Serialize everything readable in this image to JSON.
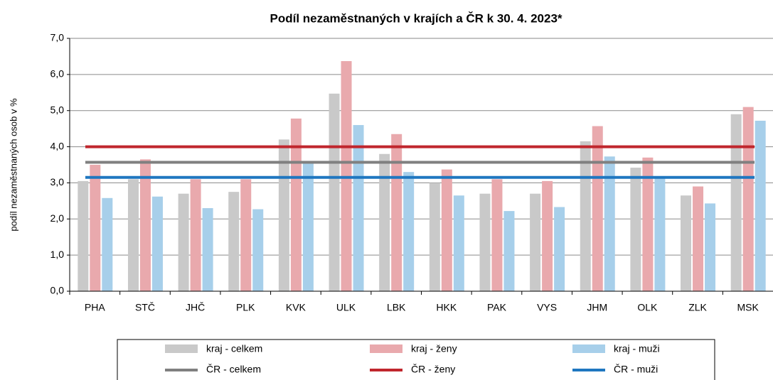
{
  "chart_data": {
    "type": "bar",
    "title": "Podíl nezaměstnaných v krajích a ČR k 30. 4. 2023*",
    "y_label": "podíl nezaměstnaných osob v %",
    "categories": [
      "PHA",
      "STČ",
      "JHČ",
      "PLK",
      "KVK",
      "ULK",
      "LBK",
      "HKK",
      "PAK",
      "VYS",
      "JHM",
      "OLK",
      "ZLK",
      "MSK"
    ],
    "series": [
      {
        "name": "kraj - celkem",
        "color": "#c9c9c9",
        "values": [
          3.05,
          3.1,
          2.7,
          2.75,
          4.2,
          5.47,
          3.8,
          3.0,
          2.7,
          2.7,
          4.15,
          3.42,
          2.65,
          4.9
        ]
      },
      {
        "name": "kraj - ženy",
        "color": "#e9a9ad",
        "values": [
          3.5,
          3.65,
          3.1,
          3.1,
          4.78,
          6.37,
          4.35,
          3.37,
          3.1,
          3.05,
          4.57,
          3.7,
          2.9,
          5.1
        ]
      },
      {
        "name": "kraj - muži",
        "color": "#a7cfea",
        "values": [
          2.58,
          2.62,
          2.3,
          2.27,
          3.55,
          4.6,
          3.3,
          2.65,
          2.22,
          2.33,
          3.73,
          3.15,
          2.43,
          4.72
        ]
      }
    ],
    "reference_lines": [
      {
        "name": "ČR - celkem",
        "color": "#808080",
        "value": 3.57
      },
      {
        "name": "ČR - ženy",
        "color": "#c0262d",
        "value": 4.0
      },
      {
        "name": "ČR - muži",
        "color": "#1f77c0",
        "value": 3.15
      }
    ],
    "ylim": [
      0,
      7
    ],
    "yticks": [
      {
        "value": 0,
        "label": "0,0"
      },
      {
        "value": 1,
        "label": "1,0"
      },
      {
        "value": 2,
        "label": "2,0"
      },
      {
        "value": 3,
        "label": "3,0"
      },
      {
        "value": 4,
        "label": "4,0"
      },
      {
        "value": 5,
        "label": "5,0"
      },
      {
        "value": 6,
        "label": "6,0"
      },
      {
        "value": 7,
        "label": "7,0"
      }
    ],
    "grid": true
  }
}
